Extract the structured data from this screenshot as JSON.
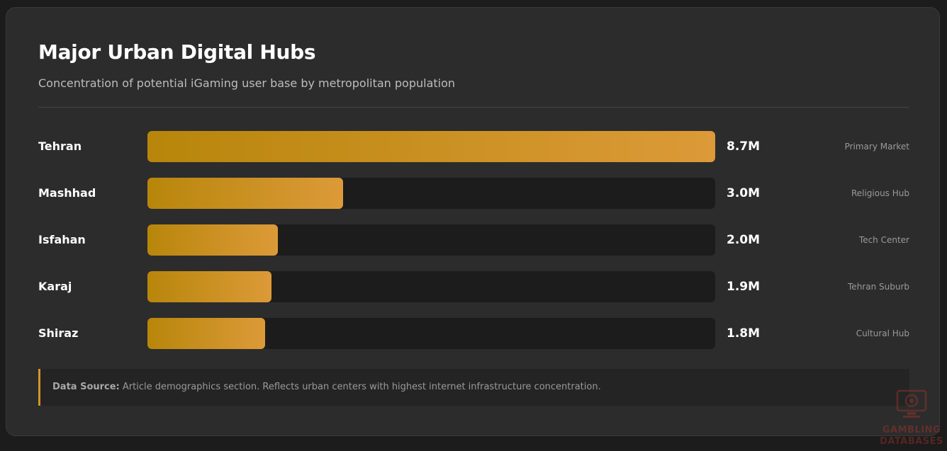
{
  "title": "Major Urban Digital Hubs",
  "subtitle": "Concentration of potential iGaming user base by metropolitan population",
  "source": {
    "label": "Data Source:",
    "text": "Article demographics section. Reflects urban centers with highest internet infrastructure concentration."
  },
  "watermark": {
    "line1": "GAMBLING",
    "line2": "DATABASES"
  },
  "colors": {
    "accent": "#d4942a",
    "bar_start": "#b8860b",
    "bar_end": "#dc9a38"
  },
  "chart_data": {
    "type": "bar",
    "orientation": "horizontal",
    "title": "Major Urban Digital Hubs",
    "subtitle": "Concentration of potential iGaming user base by metropolitan population",
    "unit": "M",
    "xlim": [
      0,
      8.7
    ],
    "categories": [
      "Tehran",
      "Mashhad",
      "Isfahan",
      "Karaj",
      "Shiraz"
    ],
    "values": [
      8.7,
      3.0,
      2.0,
      1.9,
      1.8
    ],
    "value_labels": [
      "8.7M",
      "3.0M",
      "2.0M",
      "1.9M",
      "1.8M"
    ],
    "tags": [
      "Primary Market",
      "Religious Hub",
      "Tech Center",
      "Tehran Suburb",
      "Cultural Hub"
    ]
  }
}
